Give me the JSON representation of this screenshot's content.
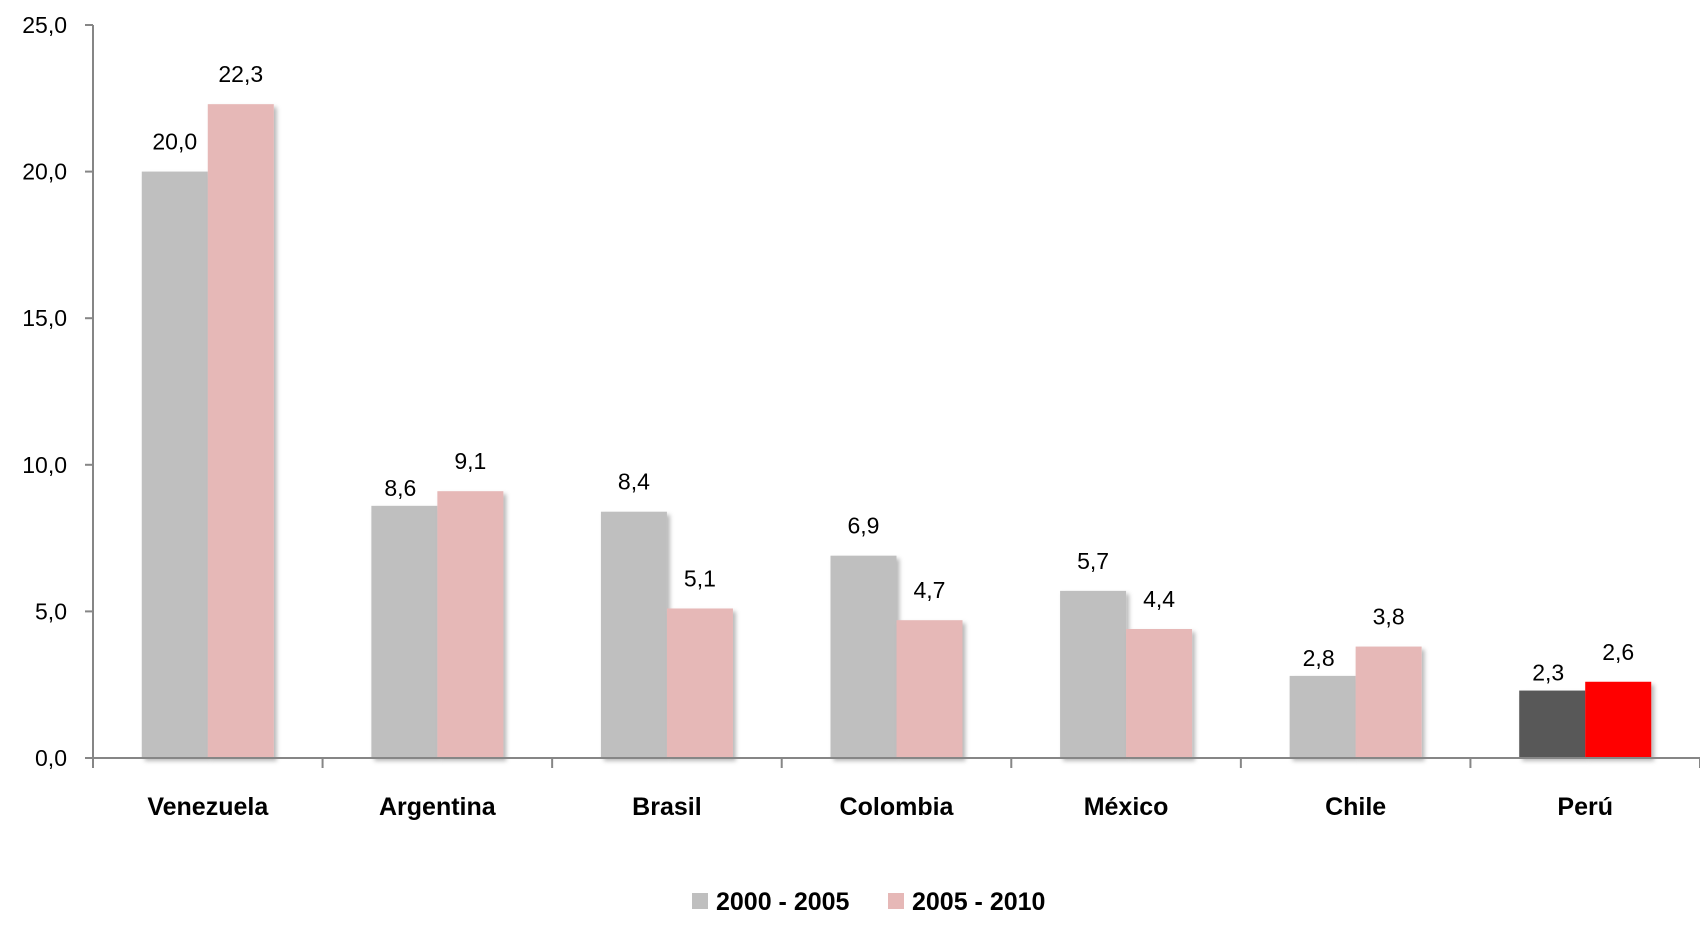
{
  "chart_data": {
    "type": "bar",
    "title": "",
    "xlabel": "",
    "ylabel": "",
    "categories": [
      "Venezuela",
      "Argentina",
      "Brasil",
      "Colombia",
      "México",
      "Chile",
      "Perú"
    ],
    "series": [
      {
        "name": "2000 - 2005",
        "color": "#bfbfbf",
        "values": [
          20.0,
          8.6,
          8.4,
          6.9,
          5.7,
          2.8,
          2.3
        ],
        "labels": [
          "20,0",
          "8,6",
          "8,4",
          "6,9",
          "5,7",
          "2,8",
          "2,3"
        ]
      },
      {
        "name": "2005 - 2010",
        "color": "#e6b8b7",
        "values": [
          22.3,
          9.1,
          5.1,
          4.7,
          4.4,
          3.8,
          2.6
        ],
        "labels": [
          "22,3",
          "9,1",
          "5,1",
          "4,7",
          "4,4",
          "3,8",
          "2,6"
        ]
      }
    ],
    "highlight": {
      "category": "Perú",
      "colors": [
        "#595959",
        "#ff0000"
      ]
    },
    "ylim": [
      0,
      25
    ],
    "yticks": [
      0,
      5,
      10,
      15,
      20,
      25
    ],
    "ytick_labels": [
      "0,0",
      "5,0",
      "10,0",
      "15,0",
      "20,0",
      "25,0"
    ],
    "grid": false,
    "legend_position": "bottom-center"
  }
}
